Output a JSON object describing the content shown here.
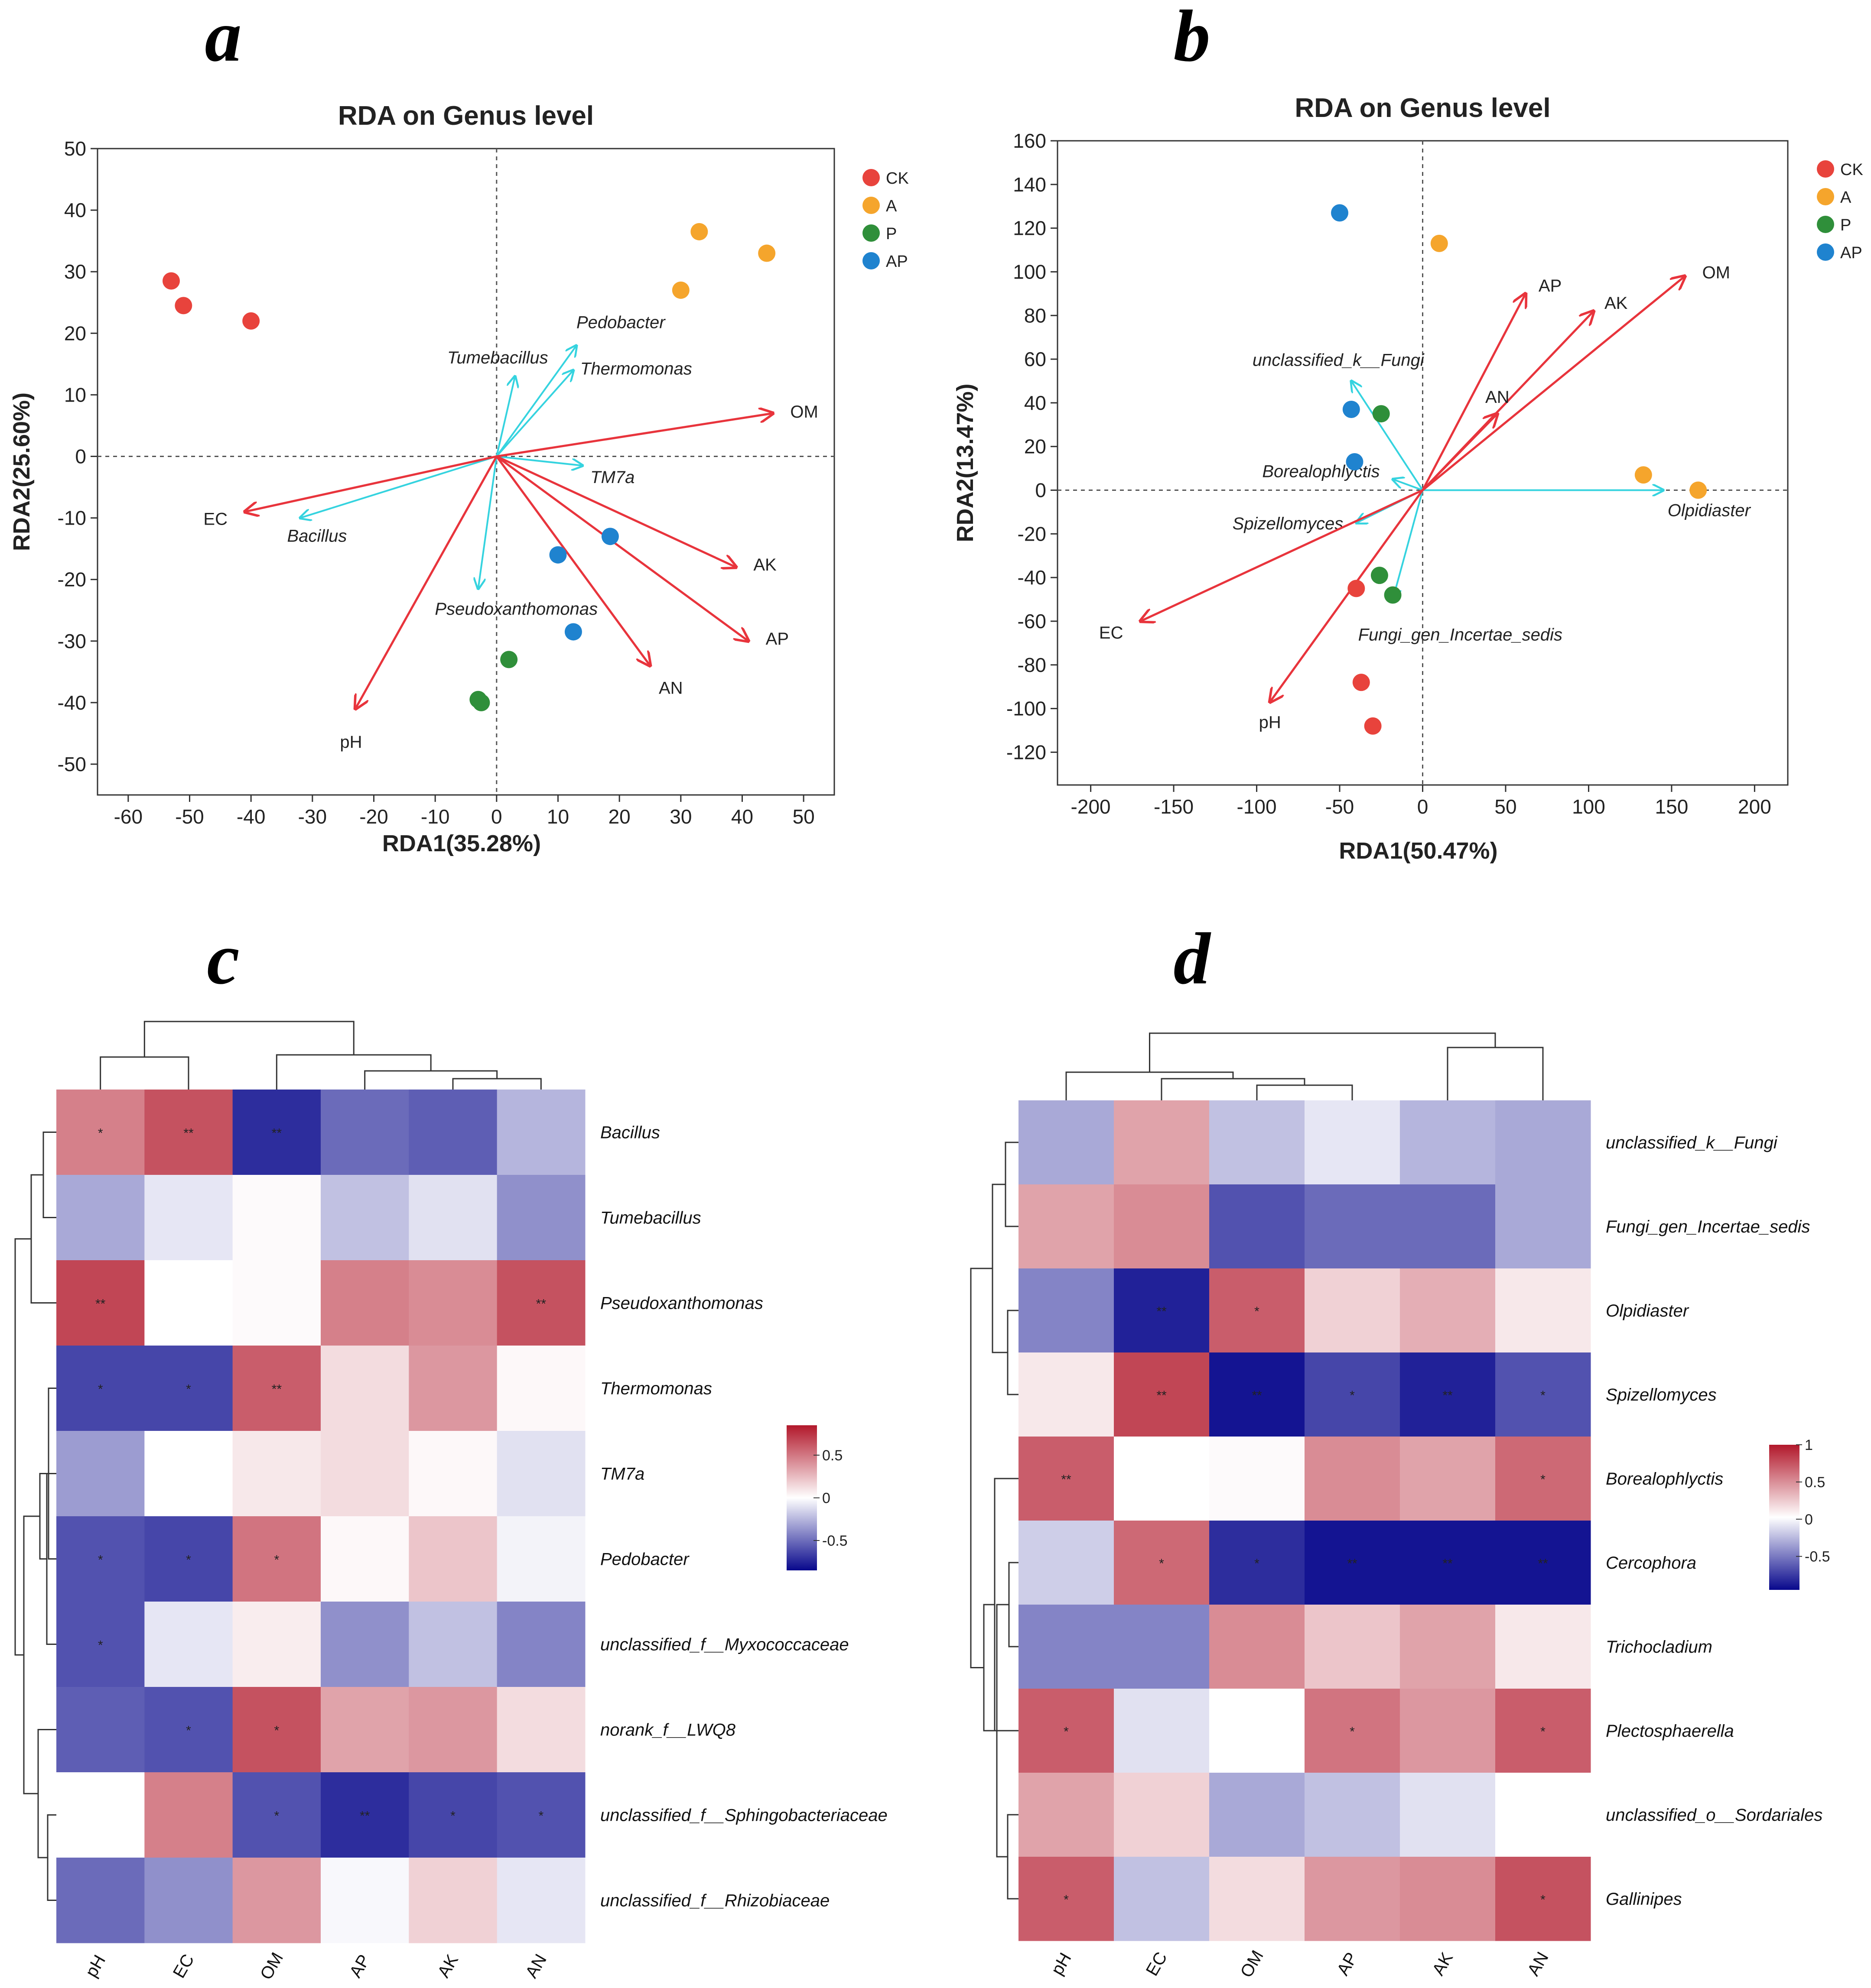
{
  "panels": [
    "a",
    "b",
    "c",
    "d"
  ],
  "chart_data": [
    {
      "id": "a",
      "type": "scatter",
      "title": "RDA on Genus level",
      "xlabel": "RDA1(35.28%)",
      "ylabel": "RDA2(25.60%)",
      "xlim": [
        -65,
        55
      ],
      "ylim": [
        -55,
        50
      ],
      "xticks": [
        -60,
        -50,
        -40,
        -30,
        -20,
        -10,
        0,
        10,
        20,
        30,
        40,
        50
      ],
      "yticks": [
        -50,
        -40,
        -30,
        -20,
        -10,
        0,
        10,
        20,
        30,
        40,
        50
      ],
      "legend": [
        {
          "name": "CK",
          "color": "#e8433c"
        },
        {
          "name": "A",
          "color": "#f5a52c"
        },
        {
          "name": "P",
          "color": "#2f8f3a"
        },
        {
          "name": "AP",
          "color": "#1f83cf"
        }
      ],
      "points": [
        {
          "group": "CK",
          "x": -53,
          "y": 28.5
        },
        {
          "group": "CK",
          "x": -51,
          "y": 24.5
        },
        {
          "group": "CK",
          "x": -40,
          "y": 22
        },
        {
          "group": "A",
          "x": 33,
          "y": 36.5
        },
        {
          "group": "A",
          "x": 44,
          "y": 33
        },
        {
          "group": "A",
          "x": 30,
          "y": 27
        },
        {
          "group": "P",
          "x": 2,
          "y": -33
        },
        {
          "group": "P",
          "x": -3,
          "y": -39.5
        },
        {
          "group": "P",
          "x": -2.5,
          "y": -40
        },
        {
          "group": "AP",
          "x": 18.5,
          "y": -13
        },
        {
          "group": "AP",
          "x": 10,
          "y": -16
        },
        {
          "group": "AP",
          "x": 12.5,
          "y": -28.5
        }
      ],
      "env_arrows": [
        {
          "label": "OM",
          "x": 45,
          "y": 7
        },
        {
          "label": "EC",
          "x": -41,
          "y": -9
        },
        {
          "label": "AK",
          "x": 39,
          "y": -18
        },
        {
          "label": "AP",
          "x": 41,
          "y": -30
        },
        {
          "label": "AN",
          "x": 25,
          "y": -34
        },
        {
          "label": "pH",
          "x": -23,
          "y": -41
        }
      ],
      "species_arrows": [
        {
          "label": "Pedobacter",
          "x": 13,
          "y": 18
        },
        {
          "label": "Tumebacillus",
          "x": 3,
          "y": 13
        },
        {
          "label": "Thermomonas",
          "x": 12.5,
          "y": 14
        },
        {
          "label": "TM7a",
          "x": 14,
          "y": -1.5
        },
        {
          "label": "Bacillus",
          "x": -32,
          "y": -10
        },
        {
          "label": "Pseudoxanthomonas",
          "x": -3,
          "y": -21.5
        }
      ]
    },
    {
      "id": "b",
      "type": "scatter",
      "title": "RDA on Genus level",
      "xlabel": "RDA1(50.47%)",
      "ylabel": "RDA2(13.47%)",
      "xlim": [
        -220,
        220
      ],
      "ylim": [
        -135,
        160
      ],
      "xticks": [
        -200,
        -150,
        -100,
        -50,
        0,
        50,
        100,
        150,
        200
      ],
      "yticks": [
        -120,
        -100,
        -80,
        -60,
        -40,
        -20,
        0,
        20,
        40,
        60,
        80,
        100,
        120,
        140,
        160
      ],
      "legend": [
        {
          "name": "CK",
          "color": "#e8433c"
        },
        {
          "name": "A",
          "color": "#f5a52c"
        },
        {
          "name": "P",
          "color": "#2f8f3a"
        },
        {
          "name": "AP",
          "color": "#1f83cf"
        }
      ],
      "points": [
        {
          "group": "CK",
          "x": -40,
          "y": -45
        },
        {
          "group": "CK",
          "x": -37,
          "y": -88
        },
        {
          "group": "CK",
          "x": -30,
          "y": -108
        },
        {
          "group": "A",
          "x": 10,
          "y": 113
        },
        {
          "group": "A",
          "x": 133,
          "y": 7
        },
        {
          "group": "A",
          "x": 166,
          "y": 0
        },
        {
          "group": "P",
          "x": -25,
          "y": 35
        },
        {
          "group": "P",
          "x": -26,
          "y": -39
        },
        {
          "group": "P",
          "x": -18,
          "y": -48
        },
        {
          "group": "AP",
          "x": -50,
          "y": 127
        },
        {
          "group": "AP",
          "x": -43,
          "y": 37
        },
        {
          "group": "AP",
          "x": -41,
          "y": 13
        }
      ],
      "env_arrows": [
        {
          "label": "OM",
          "x": 158,
          "y": 98
        },
        {
          "label": "AP",
          "x": 62,
          "y": 90
        },
        {
          "label": "AK",
          "x": 103,
          "y": 82
        },
        {
          "label": "AN",
          "x": 45,
          "y": 35
        },
        {
          "label": "EC",
          "x": -170,
          "y": -60
        },
        {
          "label": "pH",
          "x": -92,
          "y": -97
        }
      ],
      "species_arrows": [
        {
          "label": "unclassified_k__Fungi",
          "x": -43,
          "y": 50
        },
        {
          "label": "Borealophlyctis",
          "x": -18,
          "y": 5
        },
        {
          "label": "Spizellomyces",
          "x": -40,
          "y": -15
        },
        {
          "label": "Olpidiaster",
          "x": 145,
          "y": 0
        },
        {
          "label": "Fungi_gen_Incertae_sedis",
          "x": -18,
          "y": -50
        }
      ]
    },
    {
      "id": "c",
      "type": "heatmap",
      "columns": [
        "pH",
        "EC",
        "OM",
        "AP",
        "AK",
        "AN"
      ],
      "rows": [
        "Bacillus",
        "Tumebacillus",
        "Pseudoxanthomonas",
        "Thermomonas",
        "TM7a",
        "Pedobacter",
        "unclassified_f__Myxococcaceae",
        "norank_f__LWQ8",
        "unclassified_f__Sphingobacteriaceae",
        "unclassified_f__Rhizobiaceae"
      ],
      "values": [
        [
          0.55,
          0.75,
          -0.85,
          -0.6,
          -0.65,
          -0.3
        ],
        [
          -0.35,
          -0.1,
          0.02,
          -0.25,
          -0.12,
          -0.45
        ],
        [
          0.8,
          0.0,
          0.02,
          0.55,
          0.5,
          0.75
        ],
        [
          -0.75,
          -0.75,
          0.7,
          0.15,
          0.45,
          0.03
        ],
        [
          -0.4,
          0.0,
          0.1,
          0.15,
          0.03,
          -0.12
        ],
        [
          -0.7,
          -0.75,
          0.6,
          0.03,
          0.25,
          -0.05
        ],
        [
          -0.7,
          -0.1,
          0.08,
          -0.45,
          -0.25,
          -0.5
        ],
        [
          -0.65,
          -0.7,
          0.75,
          0.4,
          0.45,
          0.15
        ],
        [
          0.0,
          0.55,
          -0.7,
          -0.85,
          -0.75,
          -0.7
        ],
        [
          -0.6,
          -0.45,
          0.45,
          -0.03,
          0.2,
          -0.1
        ]
      ],
      "stars": [
        [
          "*",
          "**",
          "**",
          "",
          "",
          ""
        ],
        [
          "",
          "",
          "",
          "",
          "",
          ""
        ],
        [
          "**",
          "",
          "",
          "",
          "",
          "**"
        ],
        [
          "*",
          "*",
          "**",
          "",
          "",
          ""
        ],
        [
          "",
          "",
          "",
          "",
          "",
          ""
        ],
        [
          "*",
          "*",
          "*",
          "",
          "",
          ""
        ],
        [
          "*",
          "",
          "",
          "",
          "",
          ""
        ],
        [
          "",
          "*",
          "*",
          "",
          "",
          ""
        ],
        [
          "",
          "",
          "*",
          "**",
          "*",
          "*"
        ],
        [
          "",
          "",
          "",
          "",
          "",
          ""
        ]
      ],
      "colorbar": {
        "ticks": [
          "0.5",
          "0",
          "-0.5"
        ]
      }
    },
    {
      "id": "d",
      "type": "heatmap",
      "columns": [
        "pH",
        "EC",
        "OM",
        "AP",
        "AK",
        "AN"
      ],
      "rows": [
        "unclassified_k__Fungi",
        "Fungi_gen_Incertae_sedis",
        "Olpidiaster",
        "Spizellomyces",
        "Borealophlyctis",
        "Cercophora",
        "Trichocladium",
        "Plectosphaerella",
        "unclassified_o__Sordariales",
        "Gallinipes"
      ],
      "values": [
        [
          -0.35,
          0.4,
          -0.25,
          -0.1,
          -0.3,
          -0.35
        ],
        [
          0.4,
          0.5,
          -0.7,
          -0.6,
          -0.6,
          -0.35
        ],
        [
          -0.5,
          -0.9,
          0.7,
          0.2,
          0.35,
          0.1
        ],
        [
          0.1,
          0.8,
          -0.95,
          -0.75,
          -0.9,
          -0.7
        ],
        [
          0.7,
          0.0,
          0.02,
          0.5,
          0.4,
          0.65
        ],
        [
          -0.2,
          0.65,
          -0.85,
          -0.95,
          -0.95,
          -0.95
        ],
        [
          -0.5,
          -0.5,
          0.5,
          0.25,
          0.4,
          0.1
        ],
        [
          0.7,
          -0.12,
          0.0,
          0.6,
          0.45,
          0.7
        ],
        [
          0.4,
          0.2,
          -0.35,
          -0.25,
          -0.12,
          0.0
        ],
        [
          0.7,
          -0.25,
          0.15,
          0.45,
          0.5,
          0.75
        ]
      ],
      "stars": [
        [
          "",
          "",
          "",
          "",
          "",
          ""
        ],
        [
          "",
          "",
          "",
          "",
          "",
          ""
        ],
        [
          "",
          "**",
          "*",
          "",
          "",
          ""
        ],
        [
          "",
          "**",
          "**",
          "*",
          "**",
          "*"
        ],
        [
          "**",
          "",
          "",
          "",
          "",
          "*"
        ],
        [
          "",
          "*",
          "*",
          "**",
          "**",
          "**"
        ],
        [
          "",
          "",
          "",
          "",
          "",
          ""
        ],
        [
          "*",
          "",
          "",
          "*",
          "",
          "*"
        ],
        [
          "",
          "",
          "",
          "",
          "",
          ""
        ],
        [
          "*",
          "",
          "",
          "",
          "",
          "*"
        ]
      ],
      "colorbar": {
        "ticks": [
          "1",
          "0.5",
          "0",
          "-0.5"
        ]
      }
    }
  ]
}
